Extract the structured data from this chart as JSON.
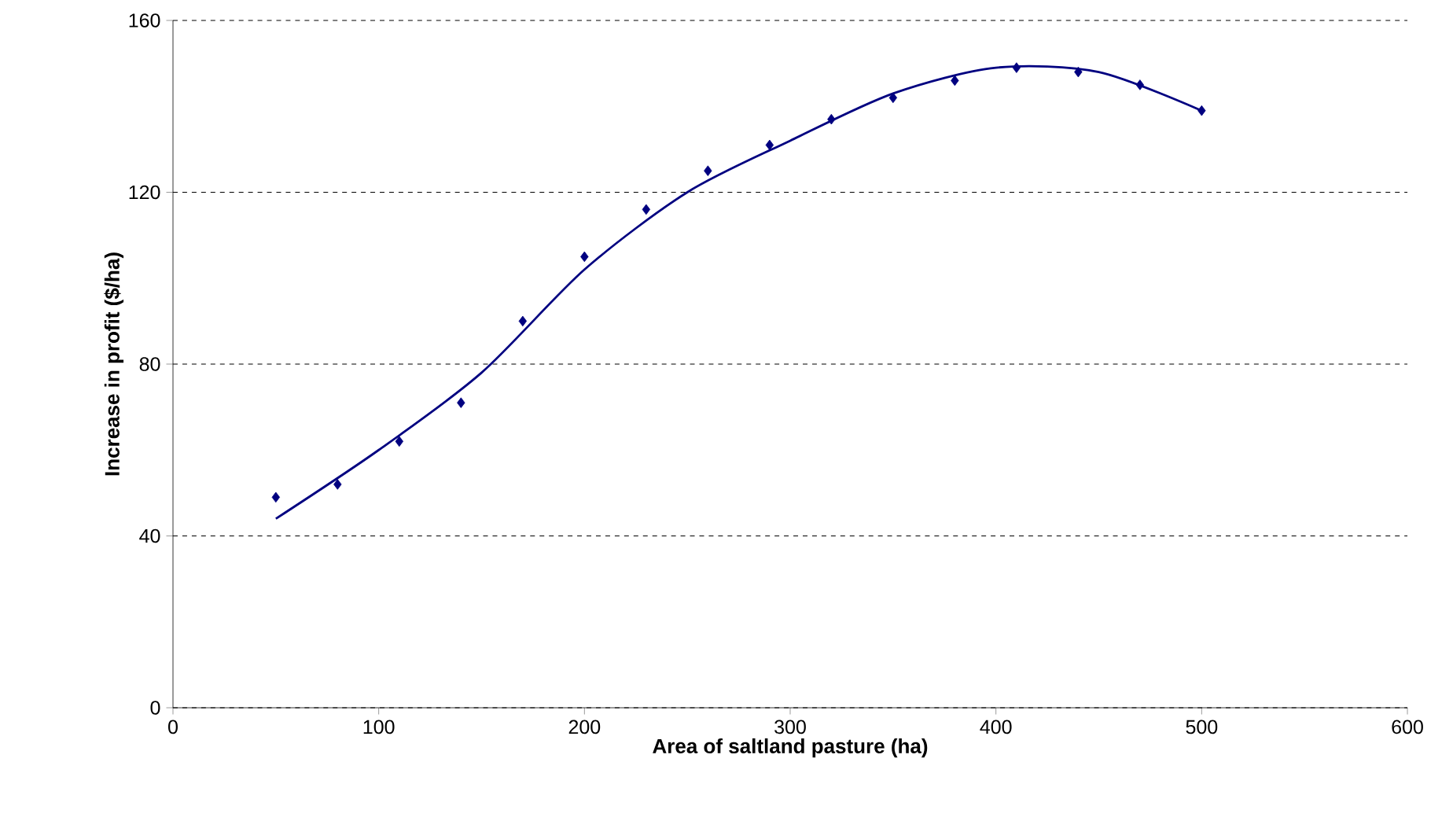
{
  "chart_data": {
    "type": "scatter",
    "xlabel": "Area of saltland pasture (ha)",
    "ylabel": "Increase in profit ($/ha)",
    "xlim": [
      0,
      600
    ],
    "xticks": [
      0,
      100,
      200,
      300,
      400,
      500,
      600
    ],
    "ylim": [
      0,
      160
    ],
    "yticks": [
      0,
      40,
      80,
      120,
      160
    ],
    "grid": "y",
    "series": [
      {
        "marker": "diamond",
        "color": "#000080",
        "x": [
          50,
          80,
          110,
          140,
          170,
          200,
          230,
          260,
          290,
          320,
          350,
          380,
          410,
          440,
          470,
          500
        ],
        "values": [
          49,
          52,
          62,
          71,
          90,
          105,
          116,
          125,
          131,
          137,
          142,
          146,
          149,
          148,
          145,
          139
        ]
      },
      {
        "type": "line",
        "marker": "none",
        "color": "#000080",
        "x": [
          50,
          100,
          150,
          200,
          250,
          300,
          350,
          400,
          450,
          500
        ],
        "values": [
          44,
          60,
          78,
          102,
          120,
          132,
          143,
          149,
          148,
          139
        ]
      }
    ]
  }
}
